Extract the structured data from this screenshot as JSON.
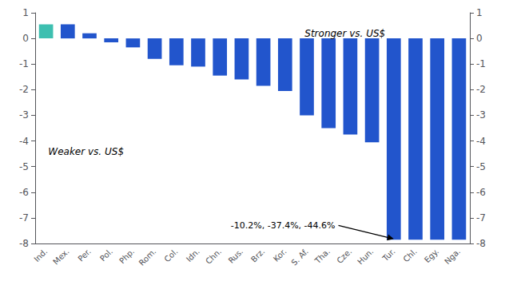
{
  "chart_data": {
    "type": "bar",
    "categories": [
      "Ind.",
      "Mex.",
      "Per.",
      "Pol.",
      "Php.",
      "Rom.",
      "Col.",
      "Idn.",
      "Chn.",
      "Rus.",
      "Brz.",
      "Kor.",
      "S. Af.",
      "Tha.",
      "Cze.",
      "Hun.",
      "Tur.",
      "Chl.",
      "Egy.",
      "Nga."
    ],
    "values": [
      0.55,
      0.55,
      0.2,
      -0.15,
      -0.35,
      -0.8,
      -1.05,
      -1.1,
      -1.45,
      -1.6,
      -1.85,
      -2.05,
      -3.0,
      -3.5,
      -3.75,
      -4.05,
      -7.85,
      -7.85,
      -7.85,
      -7.85
    ],
    "colors": [
      "#3dbfb0",
      "#2255cc",
      "#2255cc",
      "#2255cc",
      "#2255cc",
      "#2255cc",
      "#2255cc",
      "#2255cc",
      "#2255cc",
      "#2255cc",
      "#2255cc",
      "#2255cc",
      "#2255cc",
      "#2255cc",
      "#2255cc",
      "#2255cc",
      "#2255cc",
      "#2255cc",
      "#2255cc",
      "#2255cc"
    ],
    "ylim": [
      -8,
      1
    ],
    "yticks": [
      -8,
      -7,
      -6,
      -5,
      -4,
      -3,
      -2,
      -1,
      0,
      1
    ],
    "y2lim": [
      -8,
      1
    ],
    "y2ticks": [
      -8,
      -7,
      -6,
      -5,
      -4,
      -3,
      -2,
      -1,
      0,
      1
    ],
    "grid": false,
    "annotations": [
      {
        "text": "Stronger vs. US$"
      },
      {
        "text": "Weaker vs. US$"
      },
      {
        "text": "-10.2%, -37.4%, -44.6%",
        "category": "Tur."
      }
    ]
  }
}
